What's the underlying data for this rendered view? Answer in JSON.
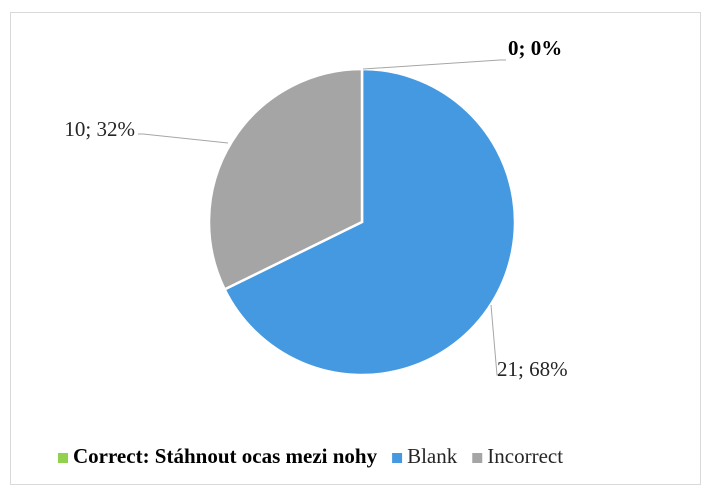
{
  "chart_data": {
    "type": "pie",
    "categories": [
      "Correct: Stáhnout ocas mezi nohy",
      "Blank",
      "Incorrect"
    ],
    "values": [
      0,
      21,
      10
    ],
    "value_labels": [
      "0; 0%",
      "21; 68%",
      "10; 32%"
    ],
    "colors": [
      "#92d050",
      "#4599e0",
      "#a5a5a5"
    ],
    "legend": "bottom"
  }
}
